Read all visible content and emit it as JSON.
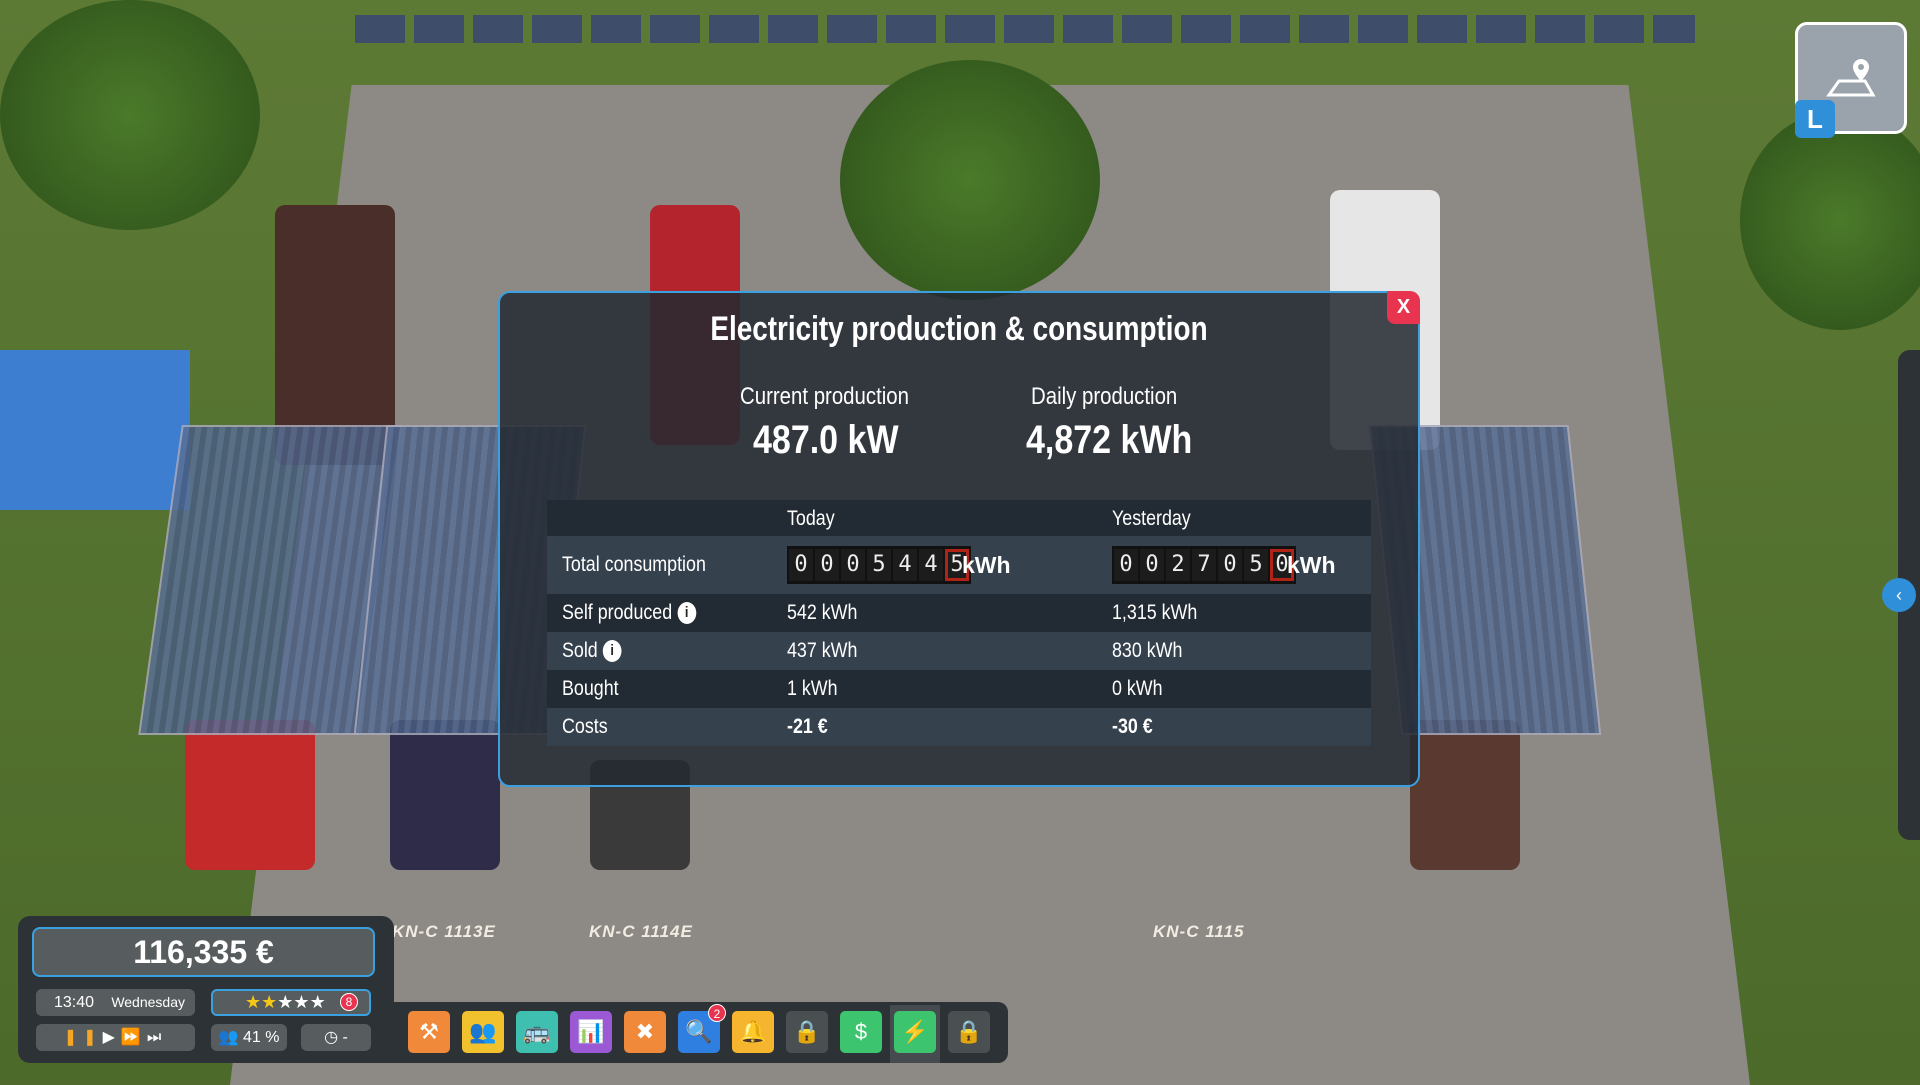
{
  "dialog": {
    "title": "Electricity production & consumption",
    "close_label": "X",
    "current_production_label": "Current production",
    "current_production_value": "487.0 kW",
    "daily_production_label": "Daily production",
    "daily_production_value": "4,872 kWh",
    "columns": [
      "",
      "Today",
      "Yesterday"
    ],
    "total_consumption": {
      "label": "Total consumption",
      "today_digits": [
        "0",
        "0",
        "0",
        "5",
        "4",
        "4",
        "5"
      ],
      "yesterday_digits": [
        "0",
        "0",
        "2",
        "7",
        "0",
        "5",
        "0"
      ],
      "unit": "kWh"
    },
    "rows": [
      {
        "label": "Self produced",
        "info": true,
        "today": "542 kWh",
        "yesterday": "1,315 kWh"
      },
      {
        "label": "Sold",
        "info": true,
        "today": "437 kWh",
        "yesterday": "830 kWh"
      },
      {
        "label": "Bought",
        "today": "1 kWh",
        "yesterday": "0 kWh"
      },
      {
        "label": "Costs",
        "today": "-21 €",
        "yesterday": "-30 €"
      }
    ]
  },
  "hud": {
    "money": "116,335 €",
    "time": "13:40",
    "day": "Wednesday",
    "rating_stars": 2,
    "rating_max": 5,
    "rating_badge": "8",
    "population": "41 %",
    "clock_value": "-"
  },
  "plates": [
    "KN-C 1113E",
    "KN-C 1114E",
    "KN-C 1115"
  ],
  "toolbar": [
    {
      "icon": "tools-icon",
      "color": "#f08a3a"
    },
    {
      "icon": "people-icon",
      "color": "#f2c12e"
    },
    {
      "icon": "bus-icon",
      "color": "#3fbfb0"
    },
    {
      "icon": "route-stats-icon",
      "color": "#9b59d6"
    },
    {
      "icon": "workshop-icon",
      "color": "#f08a3a"
    },
    {
      "icon": "search-window-icon",
      "color": "#2f7fe0",
      "badge": "2"
    },
    {
      "icon": "bell-icon",
      "color": "#f5b52e"
    },
    {
      "icon": "locked-calendar-icon",
      "color": "#4a4f52"
    },
    {
      "icon": "finance-icon",
      "color": "#3cc46e"
    },
    {
      "icon": "lightning-icon",
      "color": "#3cc46e",
      "active": true
    },
    {
      "icon": "lock-icon",
      "color": "#4a4f52"
    }
  ],
  "minimap": {
    "key": "L"
  }
}
